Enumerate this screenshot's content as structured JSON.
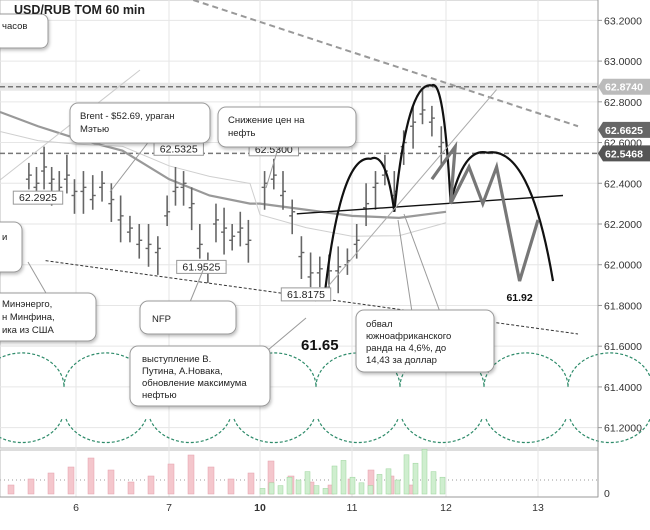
{
  "chart_data": {
    "type": "line",
    "title": "USD/RUB TOM 60 min",
    "y_axis": {
      "ticks": [
        61.2,
        61.4,
        61.6,
        61.8,
        62.0,
        62.2,
        62.4,
        62.6,
        62.8,
        63.0,
        63.2
      ],
      "tick_labels": [
        "61.2000",
        "61.4000",
        "61.6000",
        "61.8000",
        "62.0000",
        "62.2000",
        "62.4000",
        "62.6000",
        "62.8000",
        "63.0000",
        "63.2000"
      ],
      "range": [
        61.1,
        63.3
      ],
      "position": "right"
    },
    "x_axis": {
      "tick_labels": [
        "6",
        "7",
        "10",
        "11",
        "12",
        "13"
      ],
      "bold_labels": [
        "10"
      ]
    },
    "volume_axis": {
      "tick_labels": [
        "0"
      ]
    },
    "price_markers": [
      {
        "value": 62.874,
        "label": "62.8740",
        "color": "#bbbbbb"
      },
      {
        "value": 62.6625,
        "label": "62.6625",
        "color": "#666666"
      },
      {
        "value": 62.5468,
        "label": "62.5468",
        "color": "#555555"
      }
    ],
    "horizontal_levels": [
      {
        "value": 62.874,
        "style": "dashed"
      },
      {
        "value": 62.5468,
        "style": "dashed"
      }
    ],
    "price_labels": [
      {
        "label": "62.5325",
        "value": 62.5325,
        "day": 7.12
      },
      {
        "label": "62.5300",
        "value": 62.53,
        "day": 10.15
      },
      {
        "label": "61.9525",
        "value": 61.9525,
        "day": 7.4
      },
      {
        "label": "61.8175",
        "value": 61.8175,
        "day": 10.5
      },
      {
        "label": "62.2925",
        "value": 62.2925,
        "day": 5.5
      }
    ],
    "forecast_labels": [
      {
        "label": "61.65",
        "value": 61.65,
        "day": 10.65
      },
      {
        "label": "61.92",
        "value": 61.92,
        "day": 12.8
      }
    ],
    "ohlc_points": [
      {
        "day": 5.38,
        "close": 62.44
      },
      {
        "day": 5.48,
        "close": 62.4
      },
      {
        "day": 5.58,
        "close": 62.48
      },
      {
        "day": 5.68,
        "close": 62.42
      },
      {
        "day": 5.78,
        "close": 62.38
      },
      {
        "day": 5.88,
        "close": 62.44
      },
      {
        "day": 5.98,
        "close": 62.36
      },
      {
        "day": 6.08,
        "close": 62.38
      },
      {
        "day": 6.18,
        "close": 62.34
      },
      {
        "day": 6.28,
        "close": 62.4
      },
      {
        "day": 6.38,
        "close": 62.32
      },
      {
        "day": 6.48,
        "close": 62.24
      },
      {
        "day": 6.58,
        "close": 62.18
      },
      {
        "day": 6.68,
        "close": 62.12
      },
      {
        "day": 6.78,
        "close": 62.1
      },
      {
        "day": 6.88,
        "close": 62.08
      },
      {
        "day": 6.98,
        "close": 62.26
      },
      {
        "day": 7.08,
        "close": 62.38
      },
      {
        "day": 7.18,
        "close": 62.4
      },
      {
        "day": 7.28,
        "close": 62.3
      },
      {
        "day": 7.38,
        "close": 62.1
      },
      {
        "day": 7.48,
        "close": 62.0
      },
      {
        "day": 7.58,
        "close": 62.22
      },
      {
        "day": 7.68,
        "close": 62.18
      },
      {
        "day": 7.78,
        "close": 62.14
      },
      {
        "day": 7.88,
        "close": 62.18
      },
      {
        "day": 7.98,
        "close": 62.12
      },
      {
        "day": 10.05,
        "close": 62.4
      },
      {
        "day": 10.15,
        "close": 62.44
      },
      {
        "day": 10.25,
        "close": 62.36
      },
      {
        "day": 10.35,
        "close": 62.26
      },
      {
        "day": 10.45,
        "close": 62.06
      },
      {
        "day": 10.55,
        "close": 61.96
      },
      {
        "day": 10.65,
        "close": 61.98
      },
      {
        "day": 10.75,
        "close": 61.97
      },
      {
        "day": 10.85,
        "close": 61.99
      },
      {
        "day": 10.95,
        "close": 62.02
      },
      {
        "day": 11.05,
        "close": 62.12
      },
      {
        "day": 11.15,
        "close": 62.3
      },
      {
        "day": 11.25,
        "close": 62.4
      },
      {
        "day": 11.35,
        "close": 62.46
      },
      {
        "day": 11.45,
        "close": 62.36
      },
      {
        "day": 11.55,
        "close": 62.6
      },
      {
        "day": 11.65,
        "close": 62.7
      },
      {
        "day": 11.75,
        "close": 62.76
      },
      {
        "day": 11.85,
        "close": 62.72
      },
      {
        "day": 11.95,
        "close": 62.6
      }
    ],
    "moving_average": [
      {
        "day": 5.0,
        "value": 62.75
      },
      {
        "day": 5.5,
        "value": 62.68
      },
      {
        "day": 6.0,
        "value": 62.62
      },
      {
        "day": 6.5,
        "value": 62.56
      },
      {
        "day": 7.0,
        "value": 62.42
      },
      {
        "day": 7.5,
        "value": 62.34
      },
      {
        "day": 8.0,
        "value": 62.3
      },
      {
        "day": 10.0,
        "value": 62.3
      },
      {
        "day": 10.5,
        "value": 62.27
      },
      {
        "day": 11.0,
        "value": 62.24
      },
      {
        "day": 11.5,
        "value": 62.23
      },
      {
        "day": 12.0,
        "value": 62.26
      }
    ],
    "forecast_path": [
      {
        "day": 11.85,
        "value": 62.42
      },
      {
        "day": 12.1,
        "value": 62.58
      },
      {
        "day": 12.05,
        "value": 62.3
      },
      {
        "day": 12.25,
        "value": 62.48
      },
      {
        "day": 12.4,
        "value": 62.3
      },
      {
        "day": 12.55,
        "value": 62.48
      },
      {
        "day": 12.8,
        "value": 61.92
      },
      {
        "day": 13.0,
        "value": 62.22
      }
    ],
    "patterns": [
      {
        "kind": "arc",
        "points": [
          [
            10.7,
            61.84
          ],
          [
            11.2,
            62.52
          ],
          [
            11.45,
            62.26
          ]
        ]
      },
      {
        "kind": "arc",
        "points": [
          [
            11.45,
            62.26
          ],
          [
            11.85,
            62.88
          ],
          [
            12.05,
            62.3
          ]
        ]
      },
      {
        "kind": "arc",
        "points": [
          [
            12.05,
            62.3
          ],
          [
            12.45,
            62.55
          ],
          [
            13.15,
            61.92
          ]
        ]
      },
      {
        "kind": "neckline",
        "from": [
          10.4,
          62.25
        ],
        "to": [
          13.25,
          62.34
        ]
      },
      {
        "kind": "support",
        "from": [
          5.6,
          62.02
        ],
        "to": [
          13.4,
          61.66
        ],
        "style": "dashed"
      },
      {
        "kind": "resistance",
        "from": [
          7.3,
          63.3
        ],
        "to": [
          13.4,
          62.68
        ],
        "style": "dashed"
      },
      {
        "kind": "trendline",
        "from": [
          10.6,
          61.82
        ],
        "to": [
          12.55,
          62.86
        ]
      }
    ],
    "cycles": {
      "style": "dotted-arcs",
      "color": "#2e8b6a",
      "center_value": 61.4
    },
    "volume": {
      "green": [
        2,
        4,
        3,
        6,
        5,
        8,
        3,
        2,
        10,
        12,
        6,
        4,
        3,
        7,
        9,
        5,
        14,
        11,
        16,
        8,
        6
      ],
      "pink": [
        3,
        5,
        7,
        9,
        12,
        8,
        4,
        6,
        10,
        13,
        9,
        5,
        7,
        11,
        6,
        4,
        3,
        5,
        8,
        6,
        3
      ]
    },
    "callouts": [
      {
        "text": "часов"
      },
      {
        "text": "Brent - $52.69, ураган Мэтью"
      },
      {
        "text": "Снижение цен на нефть"
      },
      {
        "text": "Минэнерго, н Минфина, ика из США"
      },
      {
        "text": "NFP"
      },
      {
        "text": "выступление В. Путина, А.Новака, обновление максимума нефтью"
      },
      {
        "text": "обвал южноафриканского ранда  на 4,6%, до 14,43 за доллар"
      }
    ]
  }
}
